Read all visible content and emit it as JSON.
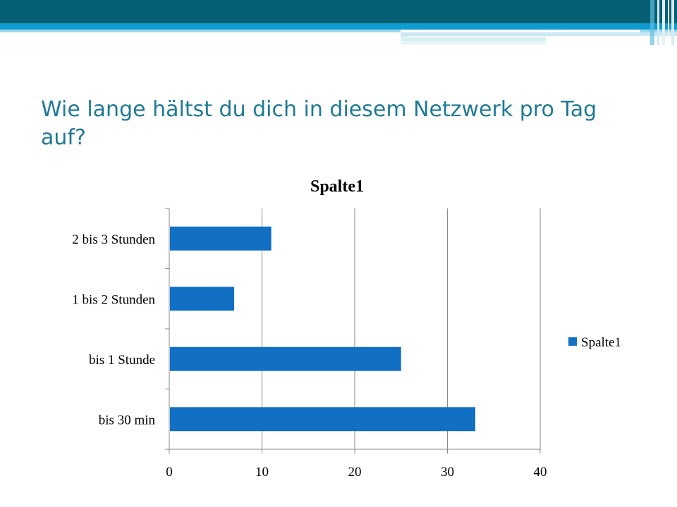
{
  "slide": {
    "title": "Wie lange hältst du dich in diesem Netzwerk pro Tag auf?",
    "colors": {
      "header_dark": "#075f74",
      "header_blue": "#0f9bd0",
      "header_light": "#9fd6ec",
      "title": "#1f7a96"
    }
  },
  "chart_data": {
    "type": "bar",
    "orientation": "horizontal",
    "title": "Spalte1",
    "categories": [
      "bis 30 min",
      "bis 1 Stunde",
      "1 bis 2 Stunden",
      "2 bis 3 Stunden"
    ],
    "series": [
      {
        "name": "Spalte1",
        "values": [
          33,
          25,
          7,
          11
        ],
        "color": "#1170c4"
      }
    ],
    "xlim": [
      0,
      40
    ],
    "xticks": [
      "0",
      "10",
      "20",
      "30",
      "40"
    ],
    "xlabel": "",
    "ylabel": "",
    "grid": true,
    "legend": {
      "position": "right",
      "labels": [
        "Spalte1"
      ]
    }
  }
}
